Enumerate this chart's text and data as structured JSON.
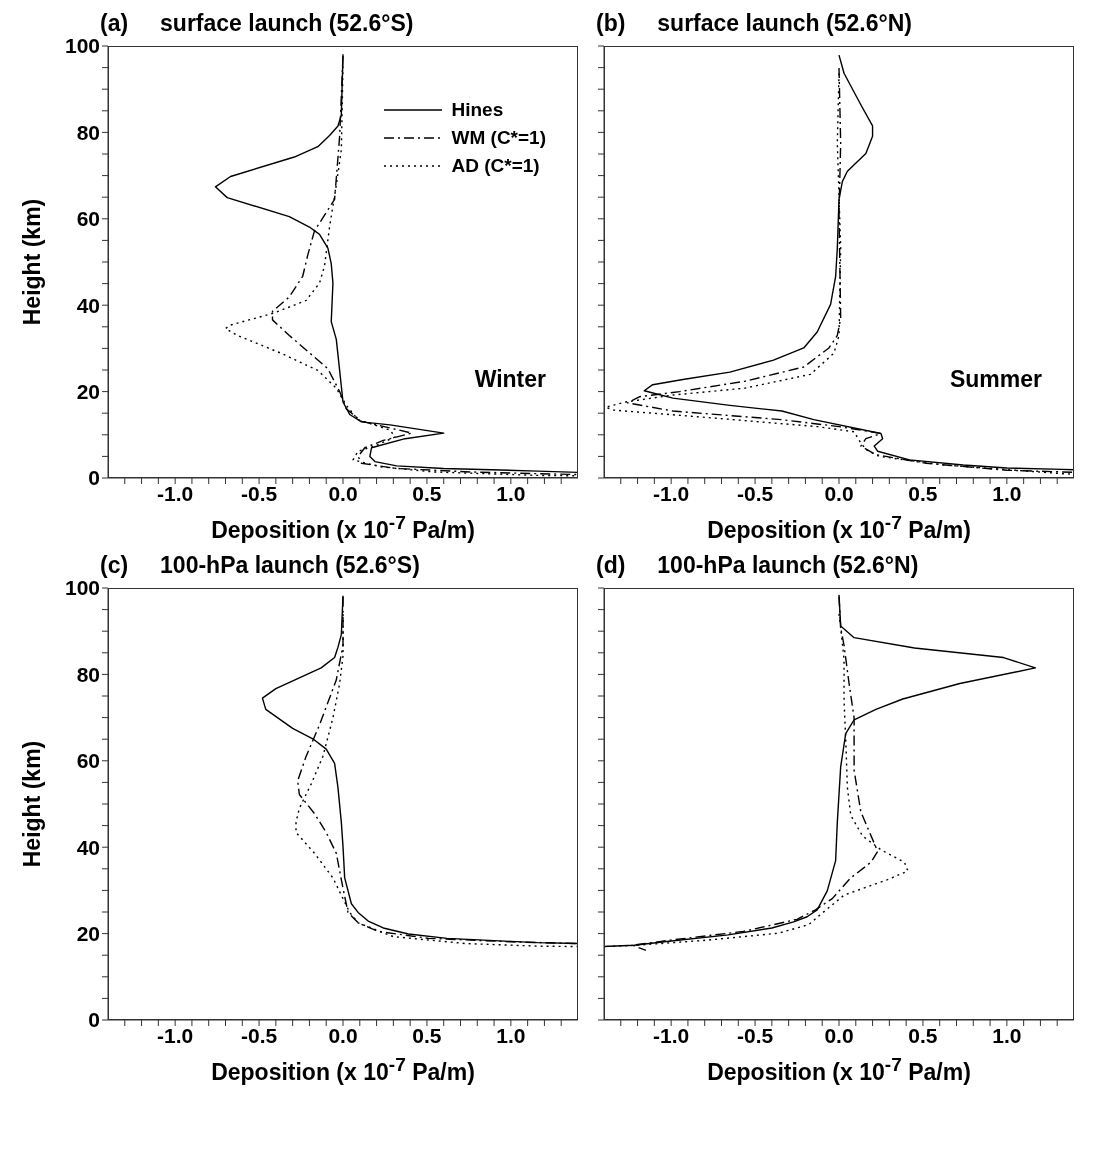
{
  "chart_data": [
    {
      "type": "line",
      "title": "(a)     surface launch (52.6°S)",
      "xlabel": "Deposition (x 10$^{-7}$ Pa/m)",
      "ylabel": "Height (km)",
      "annotations": [
        "Winter"
      ],
      "legend": "top right",
      "xlim": [
        -1.4,
        1.4
      ],
      "ylim": [
        0,
        100
      ],
      "xticks": [
        {
          "value": -1.3,
          "label": null
        },
        {
          "value": -1.2,
          "label": null
        },
        {
          "value": -1.1,
          "label": null
        },
        {
          "value": -1,
          "label": "-1.0"
        },
        {
          "value": -0.9,
          "label": null
        },
        {
          "value": -0.8,
          "label": null
        },
        {
          "value": -0.7,
          "label": null
        },
        {
          "value": -0.6,
          "label": null
        },
        {
          "value": -0.5,
          "label": "-0.5"
        },
        {
          "value": -0.4,
          "label": null
        },
        {
          "value": -0.3,
          "label": null
        },
        {
          "value": -0.2,
          "label": null
        },
        {
          "value": -0.1,
          "label": null
        },
        {
          "value": 0,
          "label": "0.0"
        },
        {
          "value": 0.1,
          "label": null
        },
        {
          "value": 0.2,
          "label": null
        },
        {
          "value": 0.3,
          "label": null
        },
        {
          "value": 0.4,
          "label": null
        },
        {
          "value": 0.5,
          "label": "0.5"
        },
        {
          "value": 0.6,
          "label": null
        },
        {
          "value": 0.7,
          "label": null
        },
        {
          "value": 0.8,
          "label": null
        },
        {
          "value": 0.9,
          "label": null
        },
        {
          "value": 1,
          "label": "1.0"
        },
        {
          "value": 1.1,
          "label": null
        },
        {
          "value": 1.2,
          "label": null
        },
        {
          "value": 1.3,
          "label": null
        }
      ],
      "yticks": [
        0,
        {
          "value": 5,
          "label": null
        },
        {
          "value": 10,
          "label": null
        },
        {
          "value": 15,
          "label": null
        },
        20,
        {
          "value": 25,
          "label": null
        },
        {
          "value": 30,
          "label": null
        },
        {
          "value": 35,
          "label": null
        },
        40,
        {
          "value": 45,
          "label": null
        },
        {
          "value": 50,
          "label": null
        },
        {
          "value": 55,
          "label": null
        },
        60,
        {
          "value": 65,
          "label": null
        },
        {
          "value": 70,
          "label": null
        },
        {
          "value": 75,
          "label": null
        },
        80,
        {
          "value": 85,
          "label": null
        },
        {
          "value": 90,
          "label": null
        },
        {
          "value": 95,
          "label": null
        },
        100
      ],
      "series": [
        {
          "name": "Hines",
          "color": "#000000",
          "line_style": "solid",
          "x": [
            0,
            -0.01,
            -0.03,
            -0.08,
            -0.15,
            -0.29,
            -0.67,
            -0.76,
            -0.69,
            -0.32,
            -0.2,
            -0.14,
            -0.09,
            -0.07,
            -0.06,
            -0.07,
            -0.04,
            -0.02,
            0,
            0.04,
            0.11,
            0.28,
            0.6,
            0.37,
            0.17,
            0.16,
            0.19,
            0.32,
            0.6,
            1.16,
            1.4
          ],
          "values": [
            98.1,
            84,
            81.5,
            79.3,
            76.7,
            74.3,
            69.8,
            67.4,
            64.9,
            60.5,
            58.1,
            56.4,
            53.2,
            49.6,
            45.1,
            36.2,
            32.1,
            24.9,
            17.6,
            14.7,
            13,
            12.3,
            10.4,
            9.1,
            7,
            5,
            3.8,
            2.8,
            2.2,
            1.6,
            1.3
          ]
        },
        {
          "name": "WM (C*=1)",
          "color": "#000000",
          "line_style": "dashed",
          "x": [
            0,
            -0.02,
            -0.05,
            -0.17,
            -0.21,
            -0.24,
            -0.32,
            -0.42,
            -0.42,
            -0.32,
            -0.15,
            -0.09,
            -0.02,
            0.02,
            0.11,
            0.41,
            0.24,
            0.13,
            0.09,
            0.11,
            0.32,
            0.76,
            1.16,
            1.4
          ],
          "values": [
            97.7,
            79.1,
            64.5,
            57.2,
            51.6,
            46.7,
            41.9,
            38.6,
            36.6,
            33,
            27.3,
            25.3,
            20,
            16,
            13.1,
            10.4,
            8.7,
            7,
            5,
            3.4,
            2.2,
            1.4,
            1,
            0.8
          ]
        },
        {
          "name": "AD (C*=1)",
          "color": "#000000",
          "line_style": "dotted",
          "x": [
            0,
            -0.01,
            -0.04,
            -0.08,
            -0.11,
            -0.14,
            -0.22,
            -0.41,
            -0.67,
            -0.7,
            -0.63,
            -0.37,
            -0.15,
            -0.04,
            0.02,
            0.09,
            0.28,
            0.31,
            0.19,
            0.09,
            0.06,
            0.22,
            0.54,
            1.16,
            1.4
          ],
          "values": [
            95.3,
            75.9,
            67.8,
            58.1,
            49.1,
            45.1,
            41.1,
            38.2,
            35.4,
            34.6,
            33,
            28.9,
            24.9,
            20.8,
            16.8,
            13.5,
            11.1,
            9.5,
            7.4,
            6.2,
            4.2,
            2.6,
            1.4,
            0.6,
            0.5
          ]
        }
      ]
    },
    {
      "type": "line",
      "title": "(b)     surface launch (52.6°N)",
      "xlabel": "Deposition (x 10$^{-7}$ Pa/m)",
      "annotations": [
        "Summer"
      ],
      "tick_labels": "x",
      "xlim": [
        -1.4,
        1.4
      ],
      "ylim": [
        0,
        100
      ],
      "xticks": [
        {
          "value": -1.3,
          "label": null
        },
        {
          "value": -1.2,
          "label": null
        },
        {
          "value": -1.1,
          "label": null
        },
        {
          "value": -1,
          "label": "-1.0"
        },
        {
          "value": -0.9,
          "label": null
        },
        {
          "value": -0.8,
          "label": null
        },
        {
          "value": -0.7,
          "label": null
        },
        {
          "value": -0.6,
          "label": null
        },
        {
          "value": -0.5,
          "label": "-0.5"
        },
        {
          "value": -0.4,
          "label": null
        },
        {
          "value": -0.3,
          "label": null
        },
        {
          "value": -0.2,
          "label": null
        },
        {
          "value": -0.1,
          "label": null
        },
        {
          "value": 0,
          "label": "0.0"
        },
        {
          "value": 0.1,
          "label": null
        },
        {
          "value": 0.2,
          "label": null
        },
        {
          "value": 0.3,
          "label": null
        },
        {
          "value": 0.4,
          "label": null
        },
        {
          "value": 0.5,
          "label": "0.5"
        },
        {
          "value": 0.6,
          "label": null
        },
        {
          "value": 0.7,
          "label": null
        },
        {
          "value": 0.8,
          "label": null
        },
        {
          "value": 0.9,
          "label": null
        },
        {
          "value": 1,
          "label": "1.0"
        },
        {
          "value": 1.1,
          "label": null
        },
        {
          "value": 1.2,
          "label": null
        },
        {
          "value": 1.3,
          "label": null
        }
      ],
      "yticks": [
        0,
        {
          "value": 5,
          "label": null
        },
        {
          "value": 10,
          "label": null
        },
        {
          "value": 15,
          "label": null
        },
        20,
        {
          "value": 25,
          "label": null
        },
        {
          "value": 30,
          "label": null
        },
        {
          "value": 35,
          "label": null
        },
        40,
        {
          "value": 45,
          "label": null
        },
        {
          "value": 50,
          "label": null
        },
        {
          "value": 55,
          "label": null
        },
        60,
        {
          "value": 65,
          "label": null
        },
        {
          "value": 70,
          "label": null
        },
        {
          "value": 75,
          "label": null
        },
        80,
        {
          "value": 85,
          "label": null
        },
        {
          "value": 90,
          "label": null
        },
        {
          "value": 95,
          "label": null
        },
        100
      ],
      "series": [
        {
          "color": "#000000",
          "line_style": "solid",
          "x": [
            0,
            0.03,
            0.13,
            0.2,
            0.2,
            0.16,
            0.05,
            0.02,
            0,
            -0.01,
            -0.02,
            -0.05,
            -0.13,
            -0.21,
            -0.39,
            -0.65,
            -0.93,
            -1.11,
            -1.16,
            -0.99,
            -0.65,
            -0.34,
            -0.15,
            0.25,
            0.26,
            0.21,
            0.23,
            0.42,
            0.74,
            1,
            1.33,
            1.4
          ],
          "values": [
            97.9,
            93.7,
            86.4,
            81.5,
            79.1,
            75.1,
            71,
            68.6,
            64.5,
            53.2,
            46.7,
            40.2,
            33.8,
            30.1,
            27.3,
            24.5,
            22.8,
            21.6,
            20.2,
            18.5,
            16.8,
            15.5,
            13.5,
            10.3,
            9.1,
            7.4,
            6.2,
            4.2,
            3,
            2.3,
            2,
            1.9
          ]
        },
        {
          "color": "#000000",
          "line_style": "dashed",
          "x": [
            0,
            0.01,
            0,
            0.01,
            -0.01,
            -0.06,
            -0.21,
            -0.56,
            -0.95,
            -1.19,
            -1.26,
            -0.99,
            -0.34,
            0,
            0.25,
            0.16,
            0.13,
            0.22,
            0.52,
            1,
            1.33,
            1.4
          ],
          "values": [
            94.9,
            77.5,
            61.3,
            37,
            33,
            30.1,
            25.7,
            22.4,
            20,
            18.8,
            17.4,
            15.5,
            13.5,
            11.9,
            10.3,
            9.1,
            7.4,
            5.4,
            3.4,
            1.8,
            1.4,
            1.3
          ]
        },
        {
          "color": "#000000",
          "line_style": "dotted",
          "x": [
            0,
            -0.01,
            0.01,
            0,
            -0.03,
            -0.17,
            -0.56,
            -0.99,
            -1.27,
            -1.39,
            -1.34,
            -0.88,
            -0.13,
            0.09,
            0.12,
            0.16,
            0.24,
            0.63,
            1.33,
            1.4
          ],
          "values": [
            93.7,
            77.5,
            53.2,
            33,
            28.9,
            24,
            20.8,
            19.2,
            17.6,
            16.4,
            15.7,
            14.3,
            11.9,
            10.7,
            8.7,
            6.6,
            5,
            3,
            1,
            0.9
          ]
        }
      ]
    },
    {
      "type": "line",
      "title": "(c)     100-hPa launch (52.6°S)",
      "xlabel": "Deposition (x 10$^{-7}$ Pa/m)",
      "ylabel": "Height (km)",
      "xlim": [
        -1.4,
        1.4
      ],
      "ylim": [
        0,
        100
      ],
      "xticks": [
        {
          "value": -1.3,
          "label": null
        },
        {
          "value": -1.2,
          "label": null
        },
        {
          "value": -1.1,
          "label": null
        },
        {
          "value": -1,
          "label": "-1.0"
        },
        {
          "value": -0.9,
          "label": null
        },
        {
          "value": -0.8,
          "label": null
        },
        {
          "value": -0.7,
          "label": null
        },
        {
          "value": -0.6,
          "label": null
        },
        {
          "value": -0.5,
          "label": "-0.5"
        },
        {
          "value": -0.4,
          "label": null
        },
        {
          "value": -0.3,
          "label": null
        },
        {
          "value": -0.2,
          "label": null
        },
        {
          "value": -0.1,
          "label": null
        },
        {
          "value": 0,
          "label": "0.0"
        },
        {
          "value": 0.1,
          "label": null
        },
        {
          "value": 0.2,
          "label": null
        },
        {
          "value": 0.3,
          "label": null
        },
        {
          "value": 0.4,
          "label": null
        },
        {
          "value": 0.5,
          "label": "0.5"
        },
        {
          "value": 0.6,
          "label": null
        },
        {
          "value": 0.7,
          "label": null
        },
        {
          "value": 0.8,
          "label": null
        },
        {
          "value": 0.9,
          "label": null
        },
        {
          "value": 1,
          "label": "1.0"
        },
        {
          "value": 1.1,
          "label": null
        },
        {
          "value": 1.2,
          "label": null
        },
        {
          "value": 1.3,
          "label": null
        }
      ],
      "yticks": [
        0,
        {
          "value": 5,
          "label": null
        },
        {
          "value": 10,
          "label": null
        },
        {
          "value": 15,
          "label": null
        },
        20,
        {
          "value": 25,
          "label": null
        },
        {
          "value": 30,
          "label": null
        },
        {
          "value": 35,
          "label": null
        },
        40,
        {
          "value": 45,
          "label": null
        },
        {
          "value": 50,
          "label": null
        },
        {
          "value": 55,
          "label": null
        },
        60,
        {
          "value": 65,
          "label": null
        },
        {
          "value": 70,
          "label": null
        },
        {
          "value": 75,
          "label": null
        },
        80,
        {
          "value": 85,
          "label": null
        },
        {
          "value": 90,
          "label": null
        },
        {
          "value": 95,
          "label": null
        },
        100
      ],
      "series": [
        {
          "color": "#000000",
          "line_style": "solid",
          "x": [
            0,
            -0.01,
            -0.03,
            -0.05,
            -0.13,
            -0.4,
            -0.48,
            -0.46,
            -0.3,
            -0.18,
            -0.1,
            -0.05,
            -0.03,
            -0.01,
            0,
            0.01,
            0.05,
            0.09,
            0.15,
            0.24,
            0.39,
            0.62,
            1,
            1.16,
            1.4
          ],
          "values": [
            98.2,
            89.2,
            86.3,
            83.9,
            81.5,
            76.7,
            74.5,
            71.9,
            67.5,
            65.1,
            62.7,
            59.4,
            53.8,
            45.8,
            40.2,
            32.9,
            26.9,
            24.9,
            22.9,
            21.3,
            19.9,
            18.9,
            18.2,
            17.9,
            17.7
          ]
        },
        {
          "color": "#000000",
          "line_style": "dashed",
          "x": [
            0,
            0,
            -0.04,
            -0.14,
            -0.22,
            -0.27,
            -0.26,
            -0.17,
            -0.1,
            -0.04,
            0,
            0.03,
            0.09,
            0.21,
            0.51,
            1,
            1.4
          ],
          "values": [
            98,
            86.7,
            78.7,
            68.3,
            61,
            55.4,
            52.2,
            47.8,
            43.4,
            38.6,
            30.5,
            24.9,
            22.5,
            20.5,
            18.9,
            18.1,
            17.7
          ]
        },
        {
          "color": "#000000",
          "line_style": "dotted",
          "x": [
            0,
            0,
            -0.02,
            -0.06,
            -0.12,
            -0.19,
            -0.26,
            -0.28,
            -0.28,
            -0.17,
            -0.06,
            0,
            0.04,
            0.09,
            0.3,
            0.73,
            1.16,
            1.4
          ],
          "values": [
            94,
            84.3,
            77.9,
            69.9,
            61,
            54.6,
            49,
            45.8,
            43.4,
            38.6,
            32.9,
            28.1,
            24.9,
            22.5,
            19.3,
            17.7,
            17.1,
            17
          ]
        }
      ]
    },
    {
      "type": "line",
      "title": "(d)     100-hPa launch (52.6°N)",
      "xlabel": "Deposition (x 10$^{-7}$ Pa/m)",
      "tick_labels": "x",
      "xlim": [
        -1.4,
        1.4
      ],
      "ylim": [
        0,
        100
      ],
      "xticks": [
        {
          "value": -1.3,
          "label": null
        },
        {
          "value": -1.2,
          "label": null
        },
        {
          "value": -1.1,
          "label": null
        },
        {
          "value": -1,
          "label": "-1.0"
        },
        {
          "value": -0.9,
          "label": null
        },
        {
          "value": -0.8,
          "label": null
        },
        {
          "value": -0.7,
          "label": null
        },
        {
          "value": -0.6,
          "label": null
        },
        {
          "value": -0.5,
          "label": "-0.5"
        },
        {
          "value": -0.4,
          "label": null
        },
        {
          "value": -0.3,
          "label": null
        },
        {
          "value": -0.2,
          "label": null
        },
        {
          "value": -0.1,
          "label": null
        },
        {
          "value": 0,
          "label": "0.0"
        },
        {
          "value": 0.1,
          "label": null
        },
        {
          "value": 0.2,
          "label": null
        },
        {
          "value": 0.3,
          "label": null
        },
        {
          "value": 0.4,
          "label": null
        },
        {
          "value": 0.5,
          "label": "0.5"
        },
        {
          "value": 0.6,
          "label": null
        },
        {
          "value": 0.7,
          "label": null
        },
        {
          "value": 0.8,
          "label": null
        },
        {
          "value": 0.9,
          "label": null
        },
        {
          "value": 1,
          "label": "1.0"
        },
        {
          "value": 1.1,
          "label": null
        },
        {
          "value": 1.2,
          "label": null
        },
        {
          "value": 1.3,
          "label": null
        }
      ],
      "yticks": [
        0,
        {
          "value": 5,
          "label": null
        },
        {
          "value": 10,
          "label": null
        },
        {
          "value": 15,
          "label": null
        },
        20,
        {
          "value": 25,
          "label": null
        },
        {
          "value": 30,
          "label": null
        },
        {
          "value": 35,
          "label": null
        },
        40,
        {
          "value": 45,
          "label": null
        },
        {
          "value": 50,
          "label": null
        },
        {
          "value": 55,
          "label": null
        },
        60,
        {
          "value": 65,
          "label": null
        },
        {
          "value": 70,
          "label": null
        },
        {
          "value": 75,
          "label": null
        },
        80,
        {
          "value": 85,
          "label": null
        },
        {
          "value": 90,
          "label": null
        },
        {
          "value": 95,
          "label": null
        },
        100
      ],
      "series": [
        {
          "color": "#000000",
          "line_style": "solid",
          "x": [
            0,
            0.01,
            0.09,
            0.45,
            0.98,
            1.17,
            0.72,
            0.38,
            0.22,
            0.09,
            0.04,
            0.01,
            -0.01,
            -0.02,
            -0.07,
            -0.13,
            -0.19,
            -0.27,
            -0.4,
            -0.66,
            -1.04,
            -1.22,
            -1.4
          ],
          "values": [
            98.4,
            91.2,
            88.5,
            86.1,
            83.9,
            81.5,
            77.9,
            74.3,
            71.9,
            69.5,
            66.3,
            58.6,
            45.8,
            36.9,
            29.9,
            25.5,
            23.9,
            22.7,
            21.3,
            19.7,
            18.1,
            17.3,
            17
          ]
        },
        {
          "color": "#000000",
          "line_style": "dashed",
          "x": [
            0,
            0.01,
            0.03,
            0.06,
            0.09,
            0.09,
            0.13,
            0.21,
            0.23,
            0.19,
            0.07,
            -0.04,
            -0.14,
            -0.25,
            -0.57,
            -1,
            -1.23,
            -1.15
          ],
          "values": [
            98,
            90.8,
            86.7,
            77.9,
            69.9,
            57.8,
            48.2,
            40.9,
            39,
            36.5,
            32.9,
            28.1,
            25.5,
            23.3,
            20.5,
            18.5,
            17.3,
            16.1
          ]
        },
        {
          "color": "#000000",
          "line_style": "dotted",
          "x": [
            0,
            0.01,
            0.03,
            0.03,
            0.04,
            0.05,
            0.07,
            0.14,
            0.25,
            0.39,
            0.41,
            0.29,
            0.03,
            -0.12,
            -0.18,
            -0.36,
            -0.78,
            -1.21,
            -1.4
          ],
          "values": [
            94,
            90.8,
            83.5,
            73.9,
            65.1,
            53.8,
            47.4,
            42.6,
            39.4,
            36.5,
            34.5,
            32.5,
            28.9,
            24.1,
            22.1,
            20.1,
            18.5,
            17.3,
            17
          ]
        }
      ]
    }
  ]
}
